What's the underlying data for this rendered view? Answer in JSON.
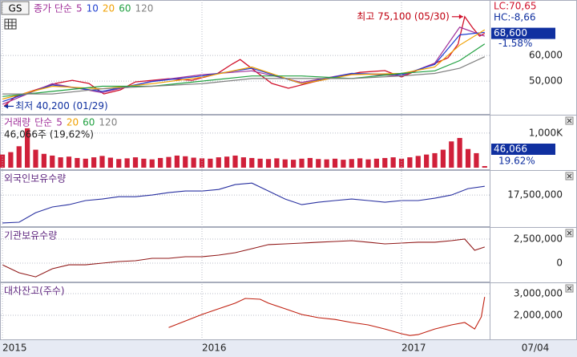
{
  "header": {
    "code": "GS",
    "ma_label": "종가 단순"
  },
  "chart_data": [
    {
      "type": "line",
      "xlim": [
        0,
        29.3
      ],
      "ylim": [
        36900,
        81600
      ],
      "yticks": [
        {
          "value": 50000,
          "label": "50,000"
        },
        {
          "value": 60000,
          "label": "60,000"
        }
      ],
      "grid": true,
      "price": {
        "color": "#d0102a",
        "x": [
          0.1,
          0.8,
          2.3,
          3.2,
          4.2,
          5.2,
          6.1,
          7.1,
          8.0,
          9.0,
          10.0,
          11.4,
          12.9,
          13.8,
          14.3,
          15.3,
          16.2,
          17.2,
          18.7,
          20.1,
          21.5,
          23.0,
          24.0,
          24.9,
          25.9,
          26.8,
          27.4,
          27.8,
          28.3,
          28.7,
          29.0
        ],
        "values": [
          40200,
          44100,
          47200,
          49100,
          50300,
          49100,
          45000,
          46600,
          49700,
          50300,
          50900,
          50300,
          52800,
          56600,
          58400,
          53400,
          49100,
          47200,
          49700,
          51600,
          53400,
          54100,
          51600,
          54100,
          56600,
          59100,
          64400,
          75100,
          70600,
          67500,
          68600
        ]
      },
      "ma_x": [
        0,
        3,
        6,
        9,
        12,
        15,
        18,
        21,
        24,
        26,
        27.5,
        29
      ],
      "series": [
        {
          "name": "5",
          "color": "#a0309a",
          "values": [
            41000,
            49000,
            45500,
            50000,
            52500,
            54000,
            49500,
            53000,
            52000,
            57000,
            71000,
            67500
          ]
        },
        {
          "name": "10",
          "color": "#2040d0",
          "values": [
            42000,
            48500,
            46000,
            49800,
            52000,
            55000,
            49000,
            53000,
            52500,
            56500,
            68000,
            69000
          ]
        },
        {
          "name": "20",
          "color": "#f0a000",
          "values": [
            43000,
            48000,
            47000,
            49000,
            51500,
            55500,
            49000,
            52500,
            53000,
            55500,
            64000,
            70000
          ]
        },
        {
          "name": "60",
          "color": "#20a040",
          "values": [
            44000,
            46000,
            48000,
            48000,
            50000,
            52000,
            52000,
            51000,
            53000,
            54000,
            58000,
            64500
          ]
        },
        {
          "name": "120",
          "color": "#808080",
          "values": [
            45000,
            45000,
            47000,
            48000,
            49000,
            51000,
            51000,
            51000,
            52000,
            53000,
            55000,
            59500
          ]
        }
      ],
      "high": {
        "label": "최고 75,100 (05/30)",
        "value": 75100,
        "x": 27.8
      },
      "low": {
        "label": "최저 40,200 (01/29)",
        "value": 40200,
        "x": 0.1
      },
      "lc_label": "LC:70,65",
      "hc_label": "HC:-8,66",
      "last": {
        "value": 68600,
        "label": "68,600"
      },
      "change_label": "-1.58%"
    },
    {
      "type": "bar",
      "title": "거래량",
      "xlim": [
        0,
        29.3
      ],
      "ylim": [
        0,
        1370000
      ],
      "yticks": [
        {
          "value": 1000000,
          "label": "1,000K"
        }
      ],
      "grid": true,
      "color": "#d0203a",
      "legend_label": "단순",
      "legend": [
        {
          "name": "5",
          "color": "#a0309a"
        },
        {
          "name": "20",
          "color": "#f0a000"
        },
        {
          "name": "60",
          "color": "#20a040"
        },
        {
          "name": "120",
          "color": "#808080"
        }
      ],
      "x": [
        0,
        0.5,
        1,
        1.5,
        2,
        2.5,
        3,
        3.5,
        4,
        4.5,
        5,
        5.5,
        6,
        6.5,
        7,
        7.5,
        8,
        8.5,
        9,
        9.5,
        10,
        10.5,
        11,
        11.5,
        12,
        12.5,
        13,
        13.5,
        14,
        14.5,
        15,
        15.5,
        16,
        16.5,
        17,
        17.5,
        18,
        18.5,
        19,
        19.5,
        20,
        20.5,
        21,
        21.5,
        22,
        22.5,
        23,
        23.5,
        24,
        24.5,
        25,
        25.5,
        26,
        26.5,
        27,
        27.5,
        28,
        28.5,
        29
      ],
      "values": [
        380000,
        450000,
        620000,
        1140000,
        520000,
        400000,
        350000,
        300000,
        320000,
        280000,
        260000,
        300000,
        340000,
        290000,
        250000,
        270000,
        300000,
        260000,
        240000,
        280000,
        310000,
        350000,
        330000,
        290000,
        270000,
        260000,
        300000,
        320000,
        350000,
        300000,
        280000,
        260000,
        250000,
        270000,
        240000,
        230000,
        260000,
        280000,
        250000,
        240000,
        260000,
        230000,
        250000,
        270000,
        240000,
        260000,
        280000,
        300000,
        260000,
        300000,
        340000,
        380000,
        420000,
        520000,
        760000,
        860000,
        540000,
        420000,
        46066
      ],
      "volume_label": "46,066주 (19,62%)",
      "last": {
        "value": 46066,
        "label": "46,066"
      },
      "ratio_label": "19.62%"
    },
    {
      "type": "line",
      "title": "외국인보유수량",
      "xlim": [
        0,
        29.3
      ],
      "ylim": [
        15000000,
        19200000
      ],
      "yticks": [
        {
          "value": 17500000,
          "label": "17,500,000"
        }
      ],
      "grid": true,
      "color": "#2830a0",
      "x": [
        0,
        1,
        2,
        3,
        4,
        5,
        6,
        7,
        8,
        9,
        10,
        11,
        12,
        13,
        14,
        15,
        16,
        17,
        18,
        19,
        20,
        21,
        22,
        23,
        24,
        25,
        26,
        27,
        28,
        29
      ],
      "values": [
        15140000,
        15200000,
        16010000,
        16490000,
        16690000,
        17030000,
        17160000,
        17360000,
        17360000,
        17500000,
        17700000,
        17840000,
        17840000,
        17970000,
        18380000,
        18510000,
        17840000,
        17160000,
        16690000,
        16890000,
        17030000,
        17160000,
        17030000,
        16890000,
        17030000,
        17030000,
        17230000,
        17500000,
        18040000,
        18240000
      ]
    },
    {
      "type": "line",
      "title": "기관보유수량",
      "xlim": [
        0,
        29.3
      ],
      "ylim": [
        -1830000,
        3330000
      ],
      "yticks": [
        {
          "value": 2500000,
          "label": "2,500,000"
        },
        0
      ],
      "grid": true,
      "color": "#901818",
      "x": [
        0,
        1,
        2,
        3,
        4,
        5,
        6,
        7,
        8,
        9,
        10,
        11,
        12,
        13,
        14,
        15,
        16,
        17,
        18,
        19,
        20,
        21,
        22,
        23,
        24,
        25,
        26,
        27,
        27.8,
        28.4,
        29
      ],
      "values": [
        -170000,
        -1000000,
        -1420000,
        -580000,
        -170000,
        -170000,
        0,
        170000,
        250000,
        500000,
        500000,
        670000,
        670000,
        830000,
        1080000,
        1500000,
        1920000,
        2000000,
        2080000,
        2170000,
        2250000,
        2330000,
        2170000,
        2000000,
        2080000,
        2170000,
        2170000,
        2330000,
        2500000,
        1330000,
        1670000
      ]
    },
    {
      "type": "line",
      "title": "대차잔고(주수)",
      "xlim": [
        0,
        29.3
      ],
      "ylim": [
        930000,
        3370000
      ],
      "yticks": [
        {
          "value": 3000000,
          "label": "3,000,000"
        },
        {
          "value": 2000000,
          "label": "2,000,000"
        }
      ],
      "grid": true,
      "color": "#c02010",
      "x": [
        10.0,
        11,
        12,
        13,
        14,
        14.6,
        15.5,
        16,
        17,
        18,
        19,
        20,
        21,
        22,
        23,
        24,
        24.5,
        25,
        26,
        27,
        27.8,
        28.4,
        28.8,
        29
      ],
      "values": [
        1440000,
        1740000,
        2040000,
        2300000,
        2560000,
        2780000,
        2740000,
        2560000,
        2300000,
        2040000,
        1890000,
        1810000,
        1670000,
        1560000,
        1370000,
        1150000,
        1070000,
        1110000,
        1370000,
        1560000,
        1670000,
        1370000,
        1930000,
        2850000
      ],
      "xticks": [
        {
          "value": 0,
          "label": "2015"
        },
        {
          "value": 12,
          "label": "2016"
        },
        {
          "value": 24,
          "label": "2017"
        }
      ],
      "current_date": "07/04"
    }
  ]
}
